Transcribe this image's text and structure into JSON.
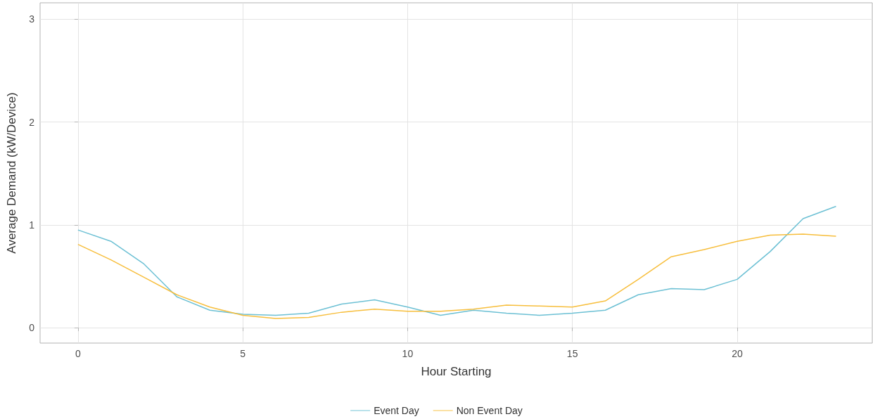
{
  "chart_data": {
    "type": "line",
    "xlabel": "Hour Starting",
    "ylabel": "Average Demand (kW/Device)",
    "x": [
      0,
      1,
      2,
      3,
      4,
      5,
      6,
      7,
      8,
      9,
      10,
      11,
      12,
      13,
      14,
      15,
      16,
      17,
      18,
      19,
      20,
      21,
      22,
      23
    ],
    "series": [
      {
        "name": "Event Day",
        "color": "#6cc0d4",
        "values": [
          0.95,
          0.84,
          0.62,
          0.3,
          0.17,
          0.13,
          0.12,
          0.14,
          0.23,
          0.27,
          0.2,
          0.12,
          0.17,
          0.14,
          0.12,
          0.14,
          0.17,
          0.32,
          0.38,
          0.37,
          0.47,
          0.74,
          1.06,
          1.18
        ]
      },
      {
        "name": "Non Event Day",
        "color": "#f7be3c",
        "values": [
          0.81,
          0.66,
          0.49,
          0.32,
          0.2,
          0.12,
          0.09,
          0.1,
          0.15,
          0.18,
          0.16,
          0.16,
          0.18,
          0.22,
          0.21,
          0.2,
          0.26,
          0.47,
          0.69,
          0.76,
          0.84,
          0.9,
          0.91,
          0.89
        ]
      }
    ],
    "xlim": [
      -1.15,
      24.1
    ],
    "xticks": [
      0,
      5,
      10,
      15,
      20
    ],
    "ylim": [
      -0.15,
      3.16
    ],
    "yticks": [
      0,
      1,
      2,
      3
    ],
    "grid": true,
    "legend": "bottom",
    "marker": "none",
    "line_style": "solid"
  }
}
